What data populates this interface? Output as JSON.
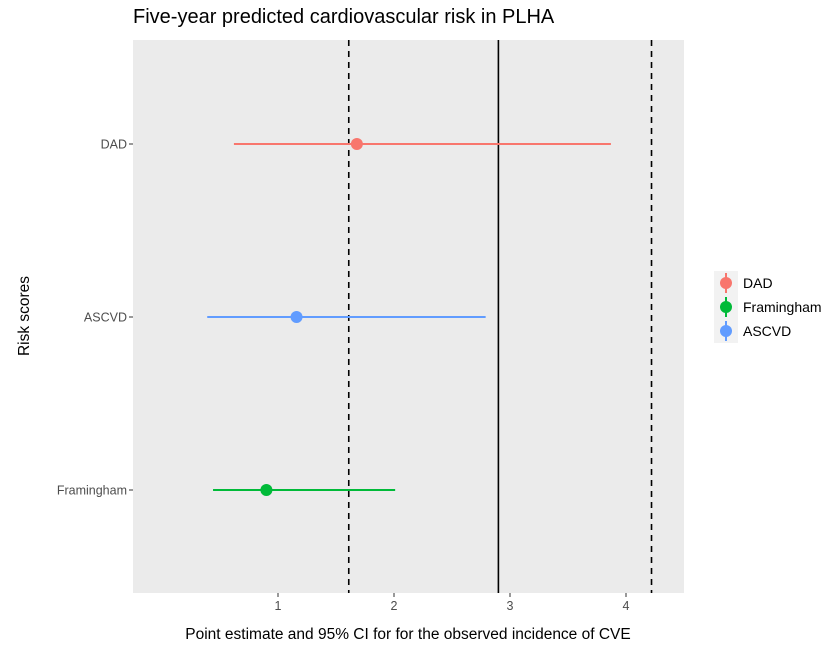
{
  "chart_data": {
    "type": "scatter",
    "title": "Five-year predicted cardiovascular risk in PLHA",
    "xlabel": "Point estimate and 95% CI for for the observed incidence of CVE",
    "ylabel": "Risk scores",
    "xlim": [
      -0.25,
      4.5
    ],
    "x_ticks": [
      1,
      2,
      3,
      4
    ],
    "x_tick_labels": [
      "1",
      "2",
      "3",
      "4"
    ],
    "categories": [
      "DAD",
      "ASCVD",
      "Framingham"
    ],
    "series": [
      {
        "name": "DAD",
        "category": "DAD",
        "estimate": 1.68,
        "ci_low": 0.62,
        "ci_high": 3.87,
        "color": "#F8766D"
      },
      {
        "name": "ASCVD",
        "category": "ASCVD",
        "estimate": 1.16,
        "ci_low": 0.39,
        "ci_high": 2.79,
        "color": "#619CFF"
      },
      {
        "name": "Framingham",
        "category": "Framingham",
        "estimate": 0.9,
        "ci_low": 0.44,
        "ci_high": 2.01,
        "color": "#00BA38"
      }
    ],
    "reference_lines": [
      {
        "x": 1.61,
        "style": "dashed"
      },
      {
        "x": 2.9,
        "style": "solid"
      },
      {
        "x": 4.22,
        "style": "dashed"
      }
    ],
    "legend": {
      "position": "right",
      "entries": [
        "DAD",
        "Framingham",
        "ASCVD"
      ]
    },
    "grid": false,
    "panel_background": "#EBEBEB"
  }
}
